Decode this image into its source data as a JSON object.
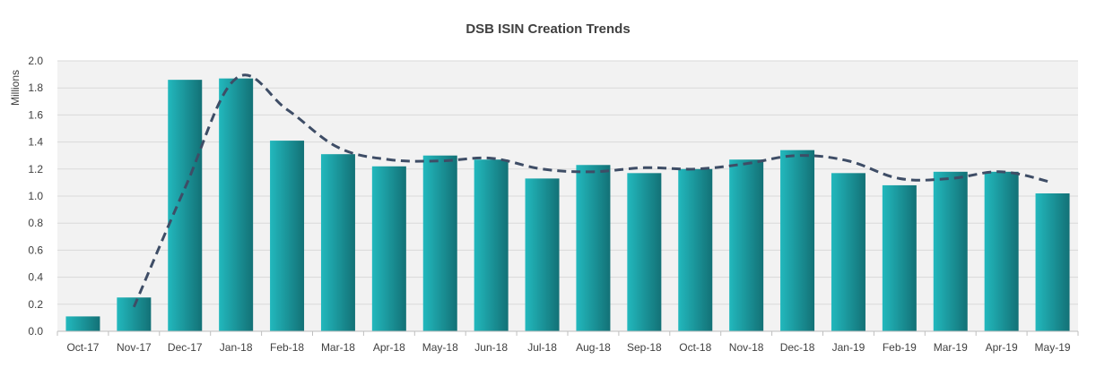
{
  "title": "DSB ISIN Creation Trends",
  "chart_data": {
    "type": "bar",
    "title": "DSB ISIN Creation Trends",
    "xlabel": "",
    "ylabel": "Millions",
    "ylim": [
      0,
      2.0
    ],
    "yticks": [
      "0.0",
      "0.2",
      "0.4",
      "0.6",
      "0.8",
      "1.0",
      "1.2",
      "1.4",
      "1.6",
      "1.8",
      "2.0"
    ],
    "grid": true,
    "legend": "none",
    "categories": [
      "Oct-17",
      "Nov-17",
      "Dec-17",
      "Jan-18",
      "Feb-18",
      "Mar-18",
      "Apr-18",
      "May-18",
      "Jun-18",
      "Jul-18",
      "Aug-18",
      "Sep-18",
      "Oct-18",
      "Nov-18",
      "Dec-18",
      "Jan-19",
      "Feb-19",
      "Mar-19",
      "Apr-19",
      "May-19"
    ],
    "series": [
      {
        "type": "bar",
        "color": "#17a2a8",
        "values": [
          0.11,
          0.25,
          1.86,
          1.87,
          1.41,
          1.31,
          1.22,
          1.3,
          1.27,
          1.13,
          1.23,
          1.17,
          1.2,
          1.27,
          1.34,
          1.17,
          1.08,
          1.18,
          1.18,
          1.02
        ]
      },
      {
        "type": "line",
        "style": "dashed",
        "color": "#3e4d66",
        "start_index": 1,
        "values": [
          null,
          0.18,
          1.06,
          1.87,
          1.64,
          1.36,
          1.27,
          1.26,
          1.28,
          1.2,
          1.18,
          1.21,
          1.2,
          1.24,
          1.3,
          1.26,
          1.13,
          1.13,
          1.18,
          1.1
        ]
      }
    ]
  }
}
